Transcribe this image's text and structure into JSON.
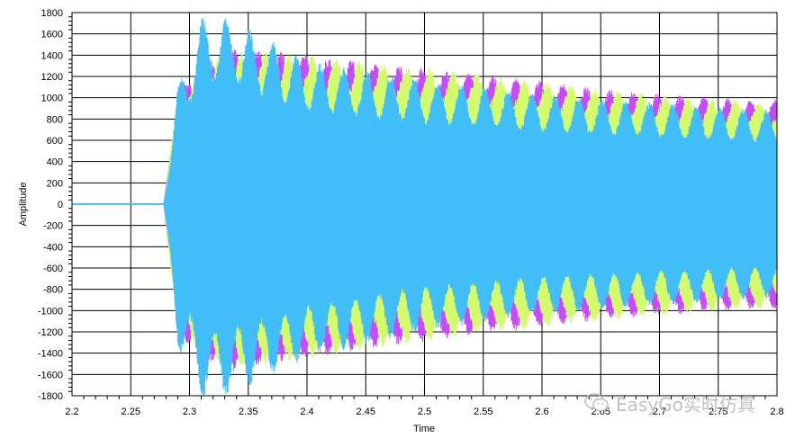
{
  "chart_data": {
    "type": "line",
    "title": "",
    "xlabel": "Time",
    "ylabel": "Amplitude",
    "xlim": [
      2.2,
      2.8
    ],
    "ylim": [
      -1800,
      1800
    ],
    "xticks": [
      2.2,
      2.25,
      2.3,
      2.35,
      2.4,
      2.45,
      2.5,
      2.55,
      2.6,
      2.65,
      2.7,
      2.75,
      2.8
    ],
    "xtick_labels": [
      "2.2",
      "2.25",
      "2.3",
      "2.35",
      "2.4",
      "2.45",
      "2.5",
      "2.55",
      "2.6",
      "2.65",
      "2.7",
      "2.75",
      "2.8"
    ],
    "yticks": [
      -1800,
      -1600,
      -1400,
      -1200,
      -1000,
      -800,
      -600,
      -400,
      -200,
      0,
      200,
      400,
      600,
      800,
      1000,
      1200,
      1400,
      1600,
      1800
    ],
    "ytick_labels": [
      "-1800",
      "-1600",
      "-1400",
      "-1200",
      "-1000",
      "-800",
      "-600",
      "-400",
      "-200",
      "0",
      "200",
      "400",
      "600",
      "800",
      "1000",
      "1200",
      "1400",
      "1600",
      "1800"
    ],
    "grid": true,
    "legend": "none",
    "onset_time": 2.278,
    "series": [
      {
        "color": "#c74cf5",
        "envelope": {
          "x": [
            2.2,
            2.278,
            2.29,
            2.33,
            2.37,
            2.45,
            2.55,
            2.65,
            2.75,
            2.8
          ],
          "upper": [
            0,
            0,
            1050,
            1400,
            1400,
            1300,
            1180,
            1050,
            960,
            950
          ],
          "lower": [
            0,
            0,
            -1200,
            -1520,
            -1450,
            -1320,
            -1180,
            -1050,
            -970,
            -950
          ]
        }
      },
      {
        "color": "#d4fb6c",
        "envelope": {
          "x": [
            2.2,
            2.278,
            2.29,
            2.33,
            2.37,
            2.45,
            2.55,
            2.65,
            2.75,
            2.8
          ],
          "upper": [
            0,
            0,
            1000,
            1380,
            1380,
            1300,
            1180,
            1050,
            950,
            940
          ],
          "lower": [
            0,
            0,
            -1150,
            -1480,
            -1450,
            -1320,
            -1180,
            -1060,
            -970,
            -950
          ]
        }
      },
      {
        "color": "#41bef8",
        "envelope": {
          "x": [
            2.2,
            2.278,
            2.29,
            2.31,
            2.33,
            2.36,
            2.4,
            2.5,
            2.6,
            2.7,
            2.8
          ],
          "upper": [
            0,
            0,
            1080,
            1700,
            1700,
            1550,
            1300,
            1130,
            1000,
            920,
            850
          ],
          "lower": [
            0,
            0,
            -1300,
            -1750,
            -1750,
            -1600,
            -1400,
            -1150,
            -1000,
            -920,
            -850
          ]
        }
      }
    ]
  },
  "watermark": {
    "text": "EasyGo实时仿真"
  }
}
